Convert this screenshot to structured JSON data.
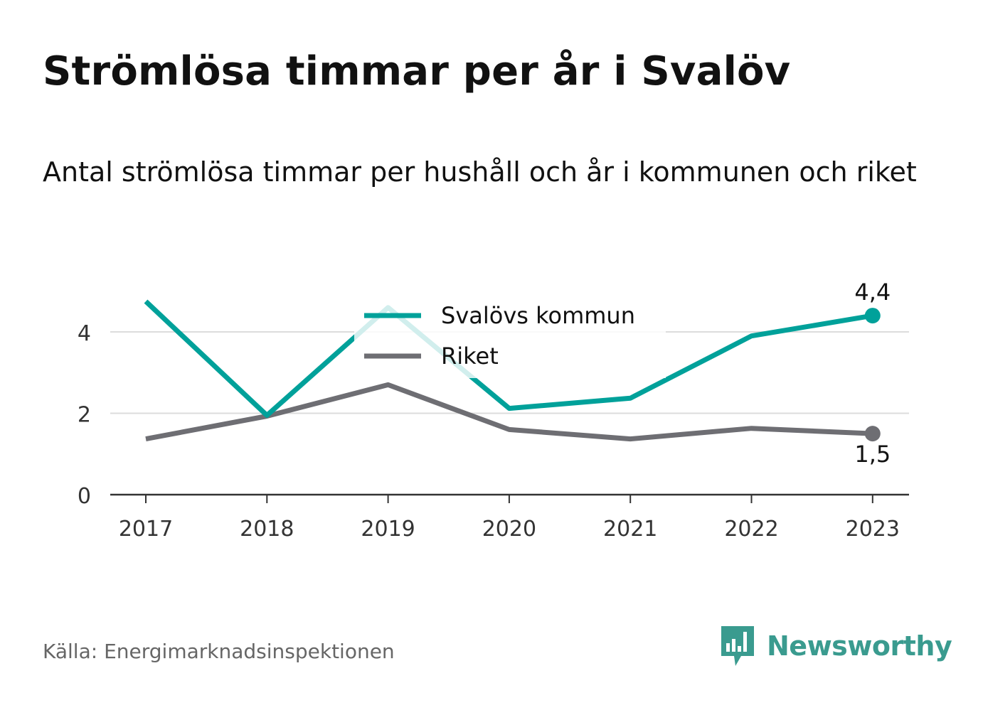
{
  "title": "Strömlösa timmar per år i Svalöv",
  "subtitle": "Antal strömlösa timmar per hushåll och år i kommunen och riket",
  "source": "Källa: Energimarknadsinspektionen",
  "brand": {
    "name": "Newsworthy",
    "color": "#3a9b8f",
    "icon": "newsworthy-logo-icon"
  },
  "chart_data": {
    "type": "line",
    "x": [
      "2017",
      "2018",
      "2019",
      "2020",
      "2021",
      "2022",
      "2023"
    ],
    "series": [
      {
        "name": "Svalövs kommun",
        "color": "#00a19a",
        "values": [
          4.75,
          1.95,
          4.6,
          2.12,
          2.37,
          3.9,
          4.4
        ],
        "end_label": "4,4"
      },
      {
        "name": "Riket",
        "color": "#6e6e73",
        "values": [
          1.37,
          1.93,
          2.7,
          1.6,
          1.37,
          1.63,
          1.5
        ],
        "end_label": "1,5"
      }
    ],
    "y_ticks": [
      0,
      2,
      4
    ],
    "y_tick_labels": [
      "0",
      "2",
      "4"
    ],
    "ylim": [
      0,
      5
    ],
    "xlabel": "",
    "ylabel": "",
    "grid": true,
    "legend_position": "top-center"
  }
}
